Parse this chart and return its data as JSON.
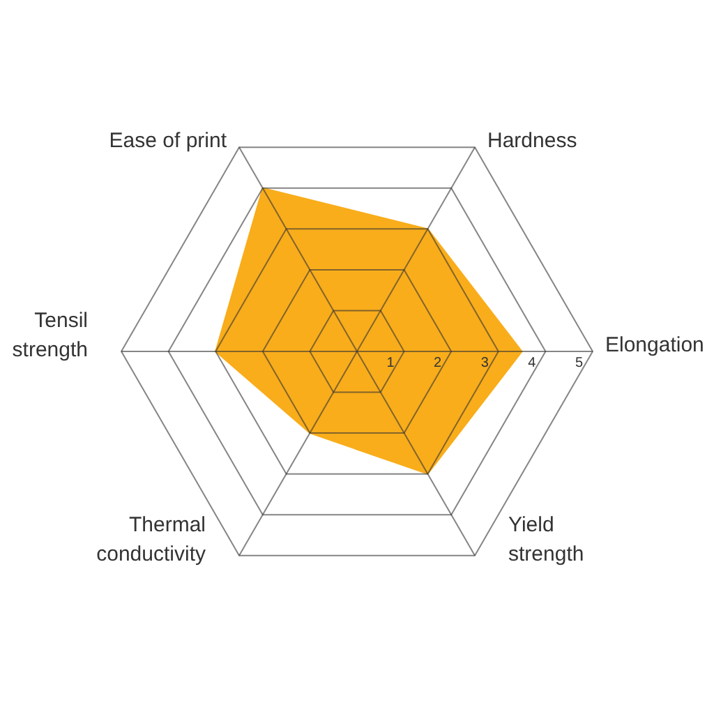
{
  "chart_data": {
    "type": "radar",
    "categories": [
      "Hardness",
      "Elongation",
      "Yield strength",
      "Thermal conductivity",
      "Tensil strength",
      "Ease of print"
    ],
    "series": [
      {
        "color": "#f9ad1b",
        "values": [
          3,
          3.5,
          3,
          2,
          3,
          4
        ]
      }
    ],
    "ylim": [
      0,
      5
    ],
    "yticks": [
      1,
      2,
      3,
      4,
      5
    ],
    "grid": true
  }
}
